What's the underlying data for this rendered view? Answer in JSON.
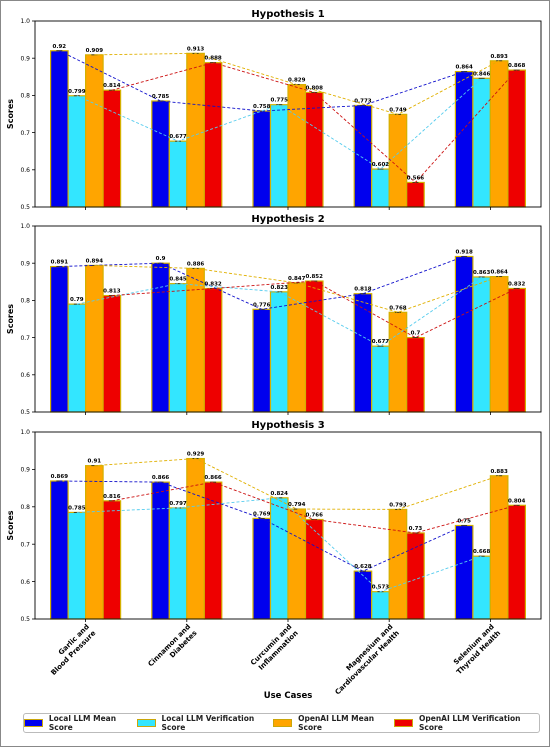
{
  "chart_data": [
    {
      "type": "bar",
      "title": "Hypothesis 1",
      "ylabel": "Scores",
      "xlabel": "",
      "ylim": [
        0.5,
        1.0
      ],
      "yticks": [
        "0.5",
        "0.6",
        "0.7",
        "0.8",
        "0.9",
        "1.0"
      ],
      "categories": [
        "Garlic and Blood Pressure",
        "Cinnamon and Diabetes",
        "Curcumin and Inflammation",
        "Magnesium and Cardiovascular Health",
        "Selenium and Thyroid Health"
      ],
      "series": [
        {
          "name": "Local LLM Mean Score",
          "values": [
            0.92,
            0.785,
            0.758,
            0.773,
            0.864
          ],
          "labels": [
            "0.92",
            "0.785",
            "0.758",
            "0.773",
            "0.864"
          ]
        },
        {
          "name": "Local LLM Verification Score",
          "values": [
            0.799,
            0.677,
            0.775,
            0.602,
            0.846
          ],
          "labels": [
            "0.799",
            "0.677",
            "0.775",
            "0.602",
            "0.846"
          ]
        },
        {
          "name": "OpenAI LLM Mean Score",
          "values": [
            0.909,
            0.913,
            0.829,
            0.749,
            0.893
          ],
          "labels": [
            "0.909",
            "0.913",
            "0.829",
            "0.749",
            "0.893"
          ]
        },
        {
          "name": "OpenAI LLM Verification Score",
          "values": [
            0.814,
            0.888,
            0.808,
            0.566,
            0.868
          ],
          "labels": [
            "0.814",
            "0.888",
            "0.808",
            "0.566",
            "0.868"
          ]
        }
      ]
    },
    {
      "type": "bar",
      "title": "Hypothesis 2",
      "ylabel": "Scores",
      "xlabel": "",
      "ylim": [
        0.5,
        1.0
      ],
      "yticks": [
        "0.5",
        "0.6",
        "0.7",
        "0.8",
        "0.9",
        "1.0"
      ],
      "categories": [
        "Garlic and Blood Pressure",
        "Cinnamon and Diabetes",
        "Curcumin and Inflammation",
        "Magnesium and Cardiovascular Health",
        "Selenium and Thyroid Health"
      ],
      "series": [
        {
          "name": "Local LLM Mean Score",
          "values": [
            0.891,
            0.9,
            0.776,
            0.818,
            0.918
          ],
          "labels": [
            "0.891",
            "0.9",
            "0.776",
            "0.818",
            "0.918"
          ]
        },
        {
          "name": "Local LLM Verification Score",
          "values": [
            0.79,
            0.845,
            0.823,
            0.677,
            0.863
          ],
          "labels": [
            "0.79",
            "0.845",
            "0.823",
            "0.677",
            "0.863"
          ]
        },
        {
          "name": "OpenAI LLM Mean Score",
          "values": [
            0.894,
            0.886,
            0.847,
            0.768,
            0.864
          ],
          "labels": [
            "0.894",
            "0.886",
            "0.847",
            "0.768",
            "0.864"
          ]
        },
        {
          "name": "OpenAI LLM Verification Score",
          "values": [
            0.813,
            0.832,
            0.852,
            0.7,
            0.832
          ],
          "labels": [
            "0.813",
            "0.832",
            "0.852",
            "0.7",
            "0.832"
          ]
        }
      ]
    },
    {
      "type": "bar",
      "title": "Hypothesis 3",
      "ylabel": "Scores",
      "xlabel": "Use Cases",
      "ylim": [
        0.5,
        1.0
      ],
      "yticks": [
        "0.5",
        "0.6",
        "0.7",
        "0.8",
        "0.9",
        "1.0"
      ],
      "categories": [
        "Garlic and Blood Pressure",
        "Cinnamon and Diabetes",
        "Curcumin and Inflammation",
        "Magnesium and Cardiovascular Health",
        "Selenium and Thyroid Health"
      ],
      "series": [
        {
          "name": "Local LLM Mean Score",
          "values": [
            0.869,
            0.866,
            0.769,
            0.628,
            0.75
          ],
          "labels": [
            "0.869",
            "0.866",
            "0.769",
            "0.628",
            "0.75"
          ]
        },
        {
          "name": "Local LLM Verification Score",
          "values": [
            0.785,
            0.797,
            0.824,
            0.573,
            0.668
          ],
          "labels": [
            "0.785",
            "0.797",
            "0.824",
            "0.573",
            "0.668"
          ]
        },
        {
          "name": "OpenAI LLM Mean Score",
          "values": [
            0.91,
            0.929,
            0.794,
            0.793,
            0.883
          ],
          "labels": [
            "0.91",
            "0.929",
            "0.794",
            "0.793",
            "0.883"
          ]
        },
        {
          "name": "OpenAI LLM Verification Score",
          "values": [
            0.816,
            0.866,
            0.766,
            0.73,
            0.804
          ],
          "labels": [
            "0.816",
            "0.866",
            "0.766",
            "0.73",
            "0.804"
          ]
        }
      ]
    }
  ],
  "x_tick_lines": [
    [
      "Garlic and",
      "Blood Pressure"
    ],
    [
      "Cinnamon and",
      "Diabetes"
    ],
    [
      "Curcumin and",
      "Inflammation"
    ],
    [
      "Magnesium and",
      "Cardiovascular Health"
    ],
    [
      "Selenium and",
      "Thyroid Health"
    ]
  ],
  "legend": {
    "placement": "bottom",
    "items": [
      "Local LLM Mean Score",
      "Local LLM Verification Score",
      "OpenAI LLM Mean Score",
      "OpenAI LLM Verification Score"
    ]
  },
  "colors": {
    "local_mean": "#0000ee",
    "local_verification": "#33e6ff",
    "openai_mean": "#ffa500",
    "openai_verification": "#ee0000",
    "bar_edge": "#d4b000"
  }
}
